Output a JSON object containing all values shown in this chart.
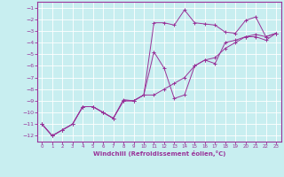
{
  "xlabel": "Windchill (Refroidissement éolien,°C)",
  "bg_color": "#c8eef0",
  "line_color": "#993399",
  "grid_color": "#ffffff",
  "xlim": [
    -0.5,
    23.5
  ],
  "ylim": [
    -12.5,
    -0.5
  ],
  "xticks": [
    0,
    1,
    2,
    3,
    4,
    5,
    6,
    7,
    8,
    9,
    10,
    11,
    12,
    13,
    14,
    15,
    16,
    17,
    18,
    19,
    20,
    21,
    22,
    23
  ],
  "yticks": [
    -12,
    -11,
    -10,
    -9,
    -8,
    -7,
    -6,
    -5,
    -4,
    -3,
    -2,
    -1
  ],
  "lines": [
    {
      "x": [
        0,
        1,
        2,
        3,
        4,
        5,
        6,
        7,
        8,
        9,
        10,
        11,
        12,
        13,
        14,
        15,
        16,
        17,
        18,
        19,
        20,
        21,
        22,
        23
      ],
      "y": [
        -11,
        -12,
        -11.5,
        -11,
        -9.5,
        -9.5,
        -10,
        -10.5,
        -9,
        -9,
        -8.5,
        -2.3,
        -2.3,
        -2.5,
        -1.2,
        -2.3,
        -2.4,
        -2.5,
        -3.1,
        -3.2,
        -2.1,
        -1.8,
        -3.5,
        -3.2
      ]
    },
    {
      "x": [
        0,
        1,
        2,
        3,
        4,
        5,
        6,
        7,
        8,
        9,
        10,
        11,
        12,
        13,
        14,
        15,
        16,
        17,
        18,
        19,
        20,
        21,
        22,
        23
      ],
      "y": [
        -11,
        -12,
        -11.5,
        -11,
        -9.5,
        -9.5,
        -10,
        -10.5,
        -8.9,
        -9,
        -8.5,
        -4.8,
        -6.2,
        -8.8,
        -8.5,
        -6.0,
        -5.5,
        -5.8,
        -4.0,
        -3.8,
        -3.5,
        -3.5,
        -3.8,
        -3.2
      ]
    },
    {
      "x": [
        0,
        1,
        2,
        3,
        4,
        5,
        6,
        7,
        8,
        9,
        10,
        11,
        12,
        13,
        14,
        15,
        16,
        17,
        18,
        19,
        20,
        21,
        22,
        23
      ],
      "y": [
        -11,
        -12,
        -11.5,
        -11,
        -9.5,
        -9.5,
        -10,
        -10.5,
        -9,
        -9,
        -8.5,
        -8.5,
        -8.0,
        -7.5,
        -7.0,
        -6.0,
        -5.5,
        -5.3,
        -4.5,
        -4.0,
        -3.5,
        -3.3,
        -3.5,
        -3.2
      ]
    }
  ]
}
